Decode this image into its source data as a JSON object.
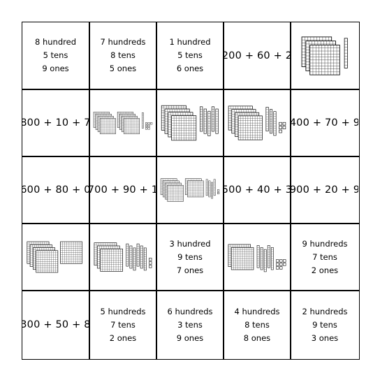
{
  "cells": [
    {
      "type": "words",
      "lines": [
        "8 hundred",
        "5 tens",
        "9 ones"
      ]
    },
    {
      "type": "words",
      "lines": [
        "7 hundreds",
        "8 tens",
        "5 ones"
      ]
    },
    {
      "type": "words",
      "lines": [
        "1 hundred",
        "5 tens",
        "6 ones"
      ]
    },
    {
      "type": "eq",
      "text": "200 + 60 + 2"
    },
    {
      "type": "blocks",
      "hundreds": 3,
      "tens": 1,
      "ones": 0
    },
    {
      "type": "eq",
      "text": "800 + 10 + 7"
    },
    {
      "type": "blocks",
      "hundreds": 8,
      "tens": 1,
      "ones": 7
    },
    {
      "type": "blocks",
      "hundreds": 4,
      "tens": 5,
      "ones": 0
    },
    {
      "type": "blocks",
      "hundreds": 4,
      "tens": 3,
      "ones": 5
    },
    {
      "type": "eq",
      "text": "400 + 70 + 9"
    },
    {
      "type": "eq",
      "text": "600 + 80 + 0"
    },
    {
      "type": "eq",
      "text": "700 + 90 + 1"
    },
    {
      "type": "blocks",
      "hundreds": 6,
      "tens": 4,
      "ones": 2
    },
    {
      "type": "eq",
      "text": "500 + 40 + 3"
    },
    {
      "type": "eq",
      "text": "900 + 20 + 9"
    },
    {
      "type": "blocks",
      "hundreds": 5,
      "tens": 0,
      "ones": 0
    },
    {
      "type": "blocks",
      "hundreds": 3,
      "tens": 6,
      "ones": 3
    },
    {
      "type": "words",
      "lines": [
        "3 hundred",
        "9 tens",
        "7 ones"
      ]
    },
    {
      "type": "blocks",
      "hundreds": 2,
      "tens": 5,
      "ones": 8
    },
    {
      "type": "words",
      "lines": [
        "9 hundreds",
        "7 tens",
        "2 ones"
      ]
    },
    {
      "type": "eq",
      "text": "300 + 50 + 8"
    },
    {
      "type": "words",
      "lines": [
        "5 hundreds",
        "7 tens",
        "2 ones"
      ]
    },
    {
      "type": "words",
      "lines": [
        "6 hundreds",
        "3 tens",
        "9 ones"
      ]
    },
    {
      "type": "words",
      "lines": [
        "4 hundreds",
        "8 tens",
        "8 ones"
      ]
    },
    {
      "type": "words",
      "lines": [
        "2 hundreds",
        "9 tens",
        "3 ones"
      ]
    }
  ]
}
